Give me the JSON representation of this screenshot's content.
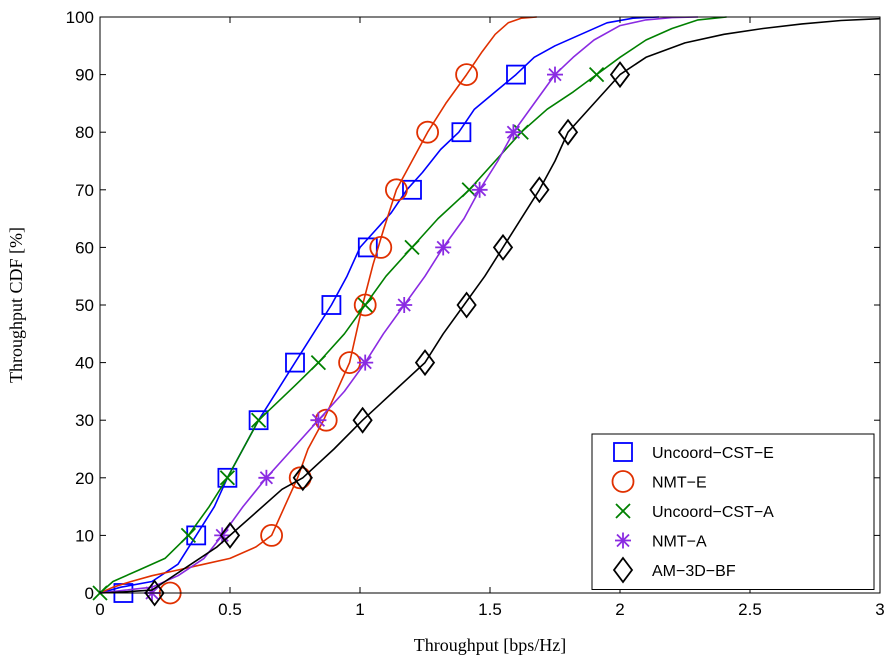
{
  "chart_data": {
    "type": "line",
    "title": "",
    "xlabel": "Throughput [bps/Hz]",
    "ylabel": "Throughput CDF [%]",
    "xlim": [
      0,
      3
    ],
    "ylim": [
      0,
      100
    ],
    "xticks": [
      0,
      0.5,
      1,
      1.5,
      2,
      2.5,
      3
    ],
    "yticks": [
      0,
      10,
      20,
      30,
      40,
      50,
      60,
      70,
      80,
      90,
      100
    ],
    "xtick_labels": [
      "0",
      "0.5",
      "1",
      "1.5",
      "2",
      "2.5",
      "3"
    ],
    "ytick_labels": [
      "0",
      "10",
      "20",
      "30",
      "40",
      "50",
      "60",
      "70",
      "80",
      "90",
      "100"
    ],
    "grid": false,
    "legend_position": "bottom-right",
    "series": [
      {
        "name": "Uncoord−CST−E",
        "color": "#0000ff",
        "marker": "square",
        "x": [
          0.0,
          0.08,
          0.2,
          0.3,
          0.37,
          0.44,
          0.49,
          0.55,
          0.61,
          0.68,
          0.75,
          0.82,
          0.89,
          0.95,
          1.0,
          1.06,
          1.12,
          1.18,
          1.24,
          1.31,
          1.38,
          1.44,
          1.52,
          1.6,
          1.67,
          1.75,
          1.85,
          1.95,
          2.05,
          2.15
        ],
        "y": [
          0,
          1,
          2,
          5,
          10,
          15,
          20,
          25,
          30,
          35,
          40,
          45,
          50,
          55,
          60,
          63,
          66,
          70,
          73,
          77,
          80,
          84,
          87,
          90,
          93,
          95,
          97,
          99,
          99.8,
          100
        ],
        "marker_x": [
          0.09,
          0.37,
          0.49,
          0.61,
          0.75,
          0.89,
          1.03,
          1.2,
          1.39,
          1.6
        ],
        "marker_y": [
          0,
          10,
          20,
          30,
          40,
          50,
          60,
          70,
          80,
          90
        ]
      },
      {
        "name": "NMT−E",
        "color": "#e03000",
        "marker": "circle",
        "x": [
          0.0,
          0.05,
          0.12,
          0.2,
          0.3,
          0.4,
          0.5,
          0.6,
          0.66,
          0.71,
          0.76,
          0.8,
          0.86,
          0.91,
          0.96,
          1.01,
          1.05,
          1.09,
          1.14,
          1.2,
          1.26,
          1.33,
          1.41,
          1.47,
          1.52,
          1.57,
          1.62,
          1.68
        ],
        "y": [
          0,
          1,
          2,
          3,
          4,
          5,
          6,
          8,
          10,
          15,
          20,
          25,
          30,
          35,
          40,
          50,
          57,
          63,
          70,
          75,
          80,
          85,
          90,
          94,
          97,
          99,
          99.8,
          100
        ],
        "marker_x": [
          0.27,
          0.66,
          0.77,
          0.87,
          0.96,
          1.02,
          1.08,
          1.14,
          1.26,
          1.41
        ],
        "marker_y": [
          0,
          10,
          20,
          30,
          40,
          50,
          60,
          70,
          80,
          90
        ]
      },
      {
        "name": "Uncoord−CST−A",
        "color": "#008000",
        "marker": "x",
        "x": [
          0.0,
          0.05,
          0.15,
          0.25,
          0.34,
          0.42,
          0.49,
          0.55,
          0.61,
          0.68,
          0.75,
          0.84,
          0.94,
          1.02,
          1.1,
          1.2,
          1.3,
          1.42,
          1.52,
          1.62,
          1.72,
          1.82,
          1.91,
          2.0,
          2.1,
          2.2,
          2.3,
          2.41
        ],
        "y": [
          0,
          2,
          4,
          6,
          10,
          15,
          20,
          25,
          30,
          33,
          36,
          40,
          45,
          50,
          55,
          60,
          65,
          70,
          75,
          80,
          84,
          87,
          90,
          93,
          96,
          98,
          99.5,
          100
        ],
        "marker_x": [
          0.0,
          0.34,
          0.49,
          0.61,
          0.84,
          1.02,
          1.2,
          1.42,
          1.62,
          1.91
        ],
        "marker_y": [
          0,
          10,
          20,
          30,
          40,
          50,
          60,
          70,
          80,
          90
        ]
      },
      {
        "name": "NMT−A",
        "color": "#8a2be2",
        "marker": "asterisk",
        "x": [
          0.0,
          0.1,
          0.2,
          0.3,
          0.4,
          0.47,
          0.55,
          0.64,
          0.74,
          0.84,
          0.94,
          1.02,
          1.09,
          1.17,
          1.25,
          1.32,
          1.4,
          1.46,
          1.53,
          1.59,
          1.67,
          1.75,
          1.82,
          1.9,
          2.0,
          2.1,
          2.2,
          2.3
        ],
        "y": [
          0,
          0.5,
          1,
          3,
          6,
          10,
          15,
          20,
          25,
          30,
          35,
          40,
          45,
          50,
          55,
          60,
          65,
          70,
          75,
          80,
          85,
          90,
          93,
          96,
          98.5,
          99.5,
          99.9,
          100
        ],
        "marker_x": [
          0.2,
          0.47,
          0.64,
          0.84,
          1.02,
          1.17,
          1.32,
          1.46,
          1.59,
          1.75
        ],
        "marker_y": [
          0,
          10,
          20,
          30,
          40,
          50,
          60,
          70,
          80,
          90
        ]
      },
      {
        "name": "AM−3D−BF",
        "color": "#000000",
        "marker": "diamond",
        "x": [
          0.0,
          0.1,
          0.2,
          0.25,
          0.35,
          0.45,
          0.5,
          0.6,
          0.7,
          0.78,
          0.9,
          1.01,
          1.13,
          1.25,
          1.32,
          1.4,
          1.48,
          1.55,
          1.62,
          1.69,
          1.75,
          1.8,
          1.9,
          2.0,
          2.1,
          2.25,
          2.4,
          2.55,
          2.7,
          2.85,
          3.0
        ],
        "y": [
          0,
          0.2,
          0.5,
          2,
          5,
          8,
          10,
          14,
          18,
          20,
          25,
          30,
          35,
          40,
          45,
          50,
          55,
          60,
          65,
          70,
          75,
          80,
          85,
          90,
          93,
          95.5,
          97,
          98,
          98.8,
          99.4,
          99.7
        ],
        "marker_x": [
          0.21,
          0.5,
          0.78,
          1.01,
          1.25,
          1.41,
          1.55,
          1.69,
          1.8,
          2.0
        ],
        "marker_y": [
          0,
          10,
          20,
          30,
          40,
          50,
          60,
          70,
          80,
          90
        ]
      }
    ]
  }
}
